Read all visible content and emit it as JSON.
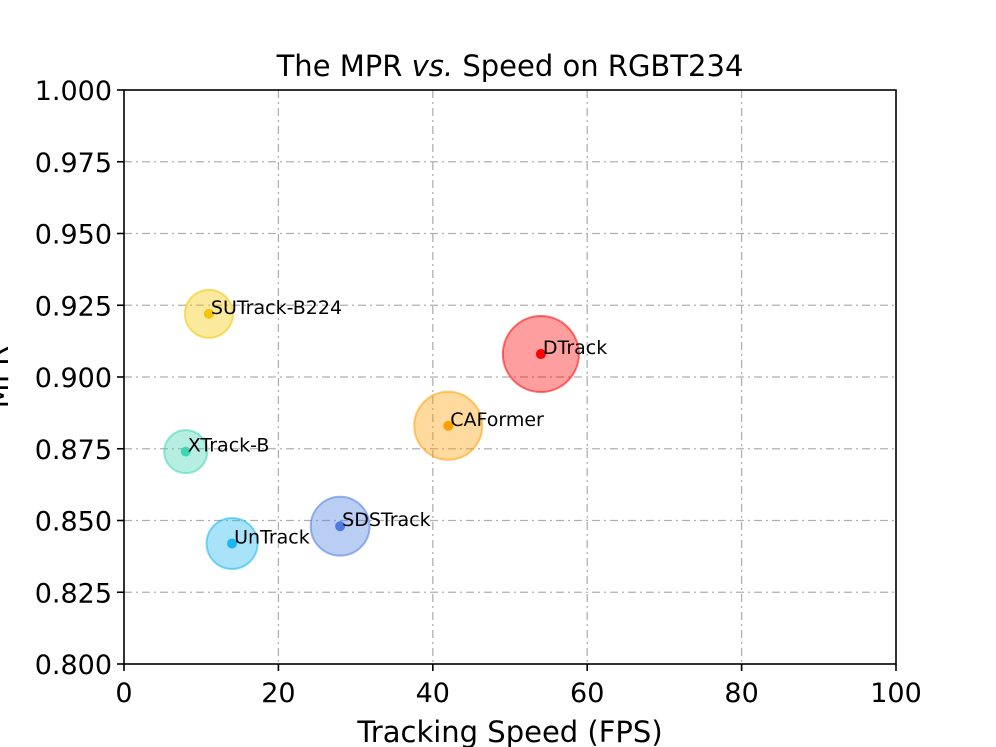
{
  "chart_data": {
    "type": "scatter",
    "title": "The MPR vs. Speed on RGBT234",
    "title_parts": [
      "The MPR ",
      "vs.",
      " Speed on RGBT234"
    ],
    "xlabel": "Tracking Speed (FPS)",
    "ylabel": "MPR",
    "xlim": [
      0,
      100
    ],
    "ylim": [
      0.8,
      1.0
    ],
    "xticks": [
      0,
      20,
      40,
      60,
      80,
      100
    ],
    "xtick_labels": [
      "0",
      "20",
      "40",
      "60",
      "80",
      "100"
    ],
    "yticks": [
      0.8,
      0.825,
      0.85,
      0.875,
      0.9,
      0.925,
      0.95,
      0.975,
      1.0
    ],
    "ytick_labels": [
      "0.800",
      "0.825",
      "0.850",
      "0.875",
      "0.900",
      "0.925",
      "0.950",
      "0.975",
      "1.000"
    ],
    "grid": true,
    "points": [
      {
        "label": "SUTrack-B224",
        "x": 11,
        "y": 0.922,
        "size": 0.4,
        "color": "#f5c400"
      },
      {
        "label": "DTrack",
        "x": 54,
        "y": 0.908,
        "size": 1.0,
        "color": "#ff0000"
      },
      {
        "label": "CAFormer",
        "x": 42,
        "y": 0.883,
        "size": 0.8,
        "color": "#ff9f00"
      },
      {
        "label": "XTrack-B",
        "x": 8,
        "y": 0.874,
        "size": 0.32,
        "color": "#3fd6b4"
      },
      {
        "label": "SDSTrack",
        "x": 28,
        "y": 0.848,
        "size": 0.6,
        "color": "#4a7be0"
      },
      {
        "label": "UnTrack",
        "x": 14,
        "y": 0.842,
        "size": 0.45,
        "color": "#1ab6f0"
      }
    ]
  }
}
